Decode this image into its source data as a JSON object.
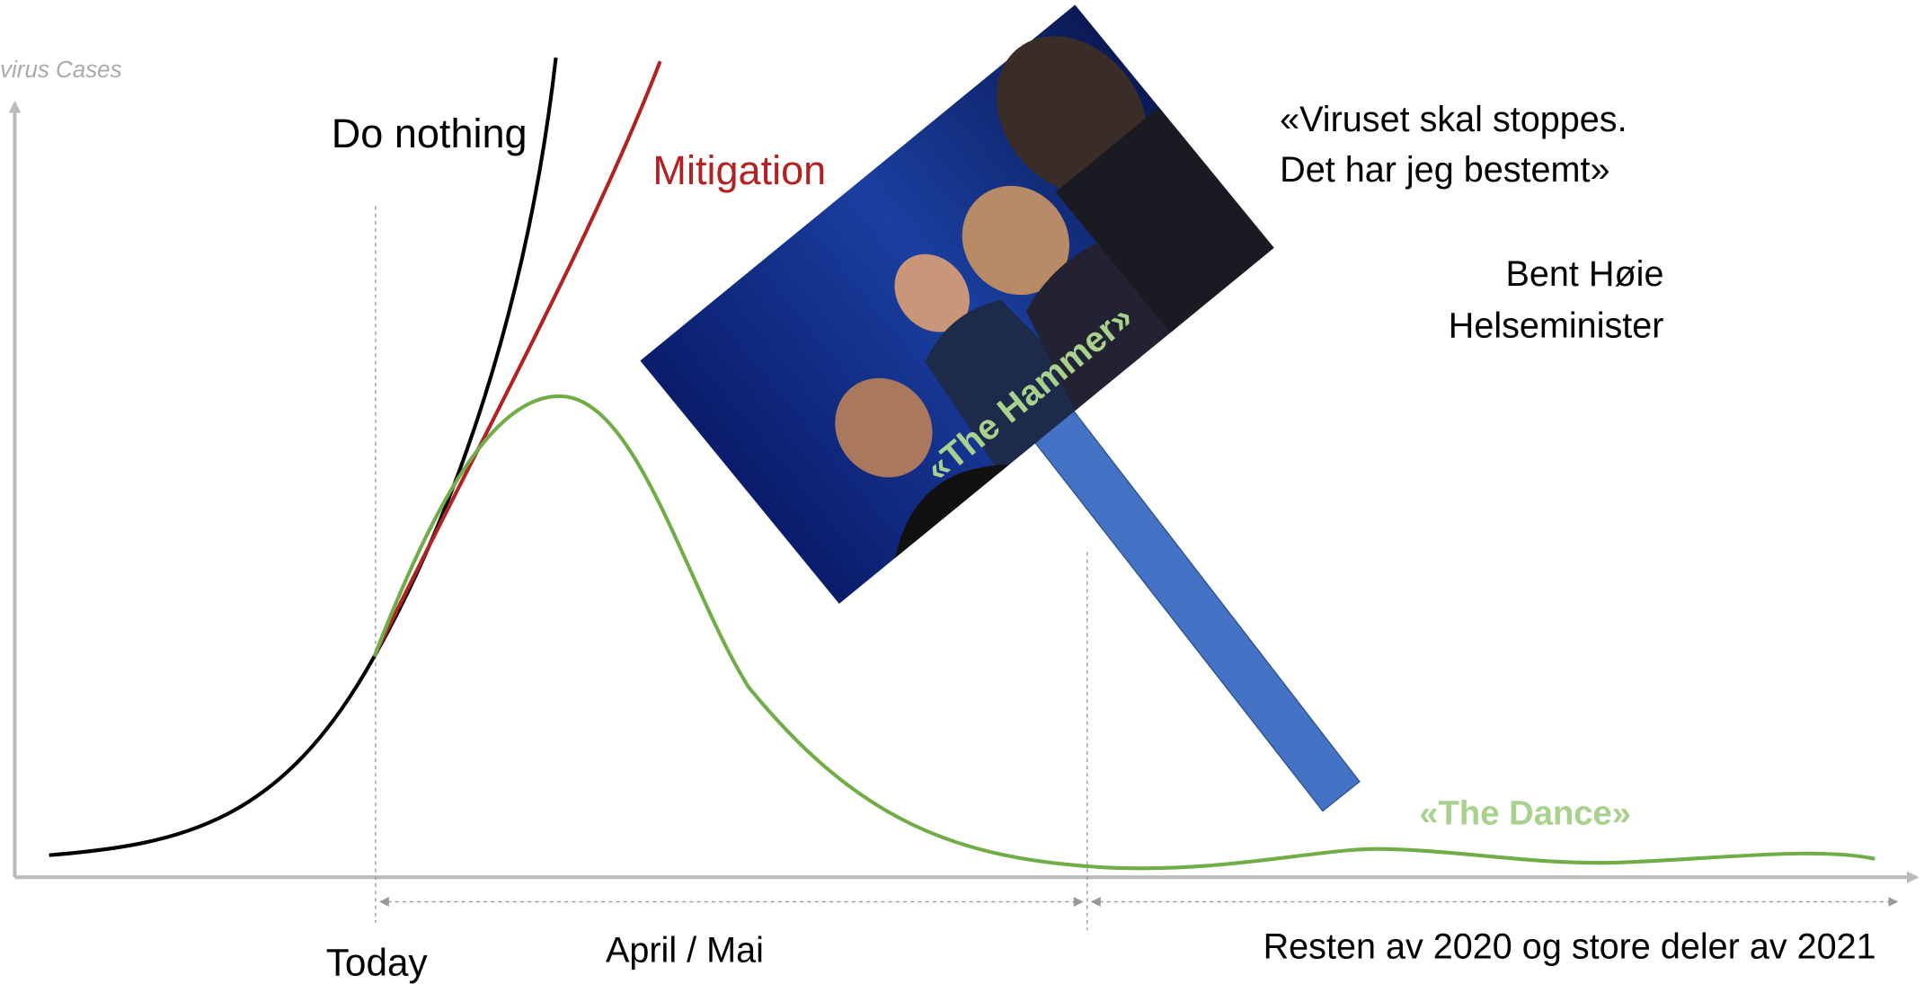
{
  "axis_label": "virus Cases",
  "curves": {
    "do_nothing": "Do nothing",
    "mitigation": "Mitigation"
  },
  "quote": {
    "line1": "«Viruset skal stoppes.",
    "line2": "Det har jeg bestemt»",
    "author": "Bent Høie",
    "role": "Helseminister"
  },
  "hammer": "«The Hammer»",
  "dance": "«The Dance»",
  "timeline": {
    "today": "Today",
    "phase1": "April / Mai",
    "phase2": "Resten av 2020 og store deler av 2021"
  }
}
